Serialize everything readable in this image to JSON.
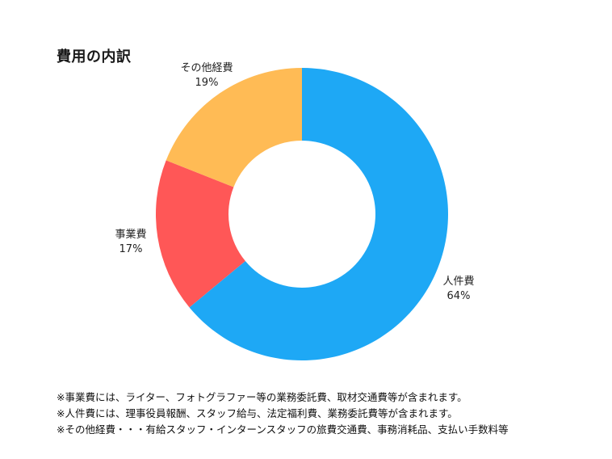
{
  "chart_data": {
    "type": "pie",
    "title": "費用の内訳",
    "donut": true,
    "slices": [
      {
        "label": "人件費",
        "value": 64,
        "value_label": "64%",
        "color": "#1ea8f5"
      },
      {
        "label": "事業費",
        "value": 17,
        "value_label": "17%",
        "color": "#ff5757"
      },
      {
        "label": "その他経費",
        "value": 19,
        "value_label": "19%",
        "color": "#ffbb55"
      }
    ]
  },
  "notes": [
    "※事業費には、ライター、フォトグラファー等の業務委託費、取材交通費等が含まれます。",
    "※人件費には、理事役員報酬、スタッフ給与、法定福利費、業務委託費等が含まれます。",
    "※その他経費・・・有給スタッフ・インターンスタッフの旅費交通費、事務消耗品、支払い手数料等"
  ]
}
